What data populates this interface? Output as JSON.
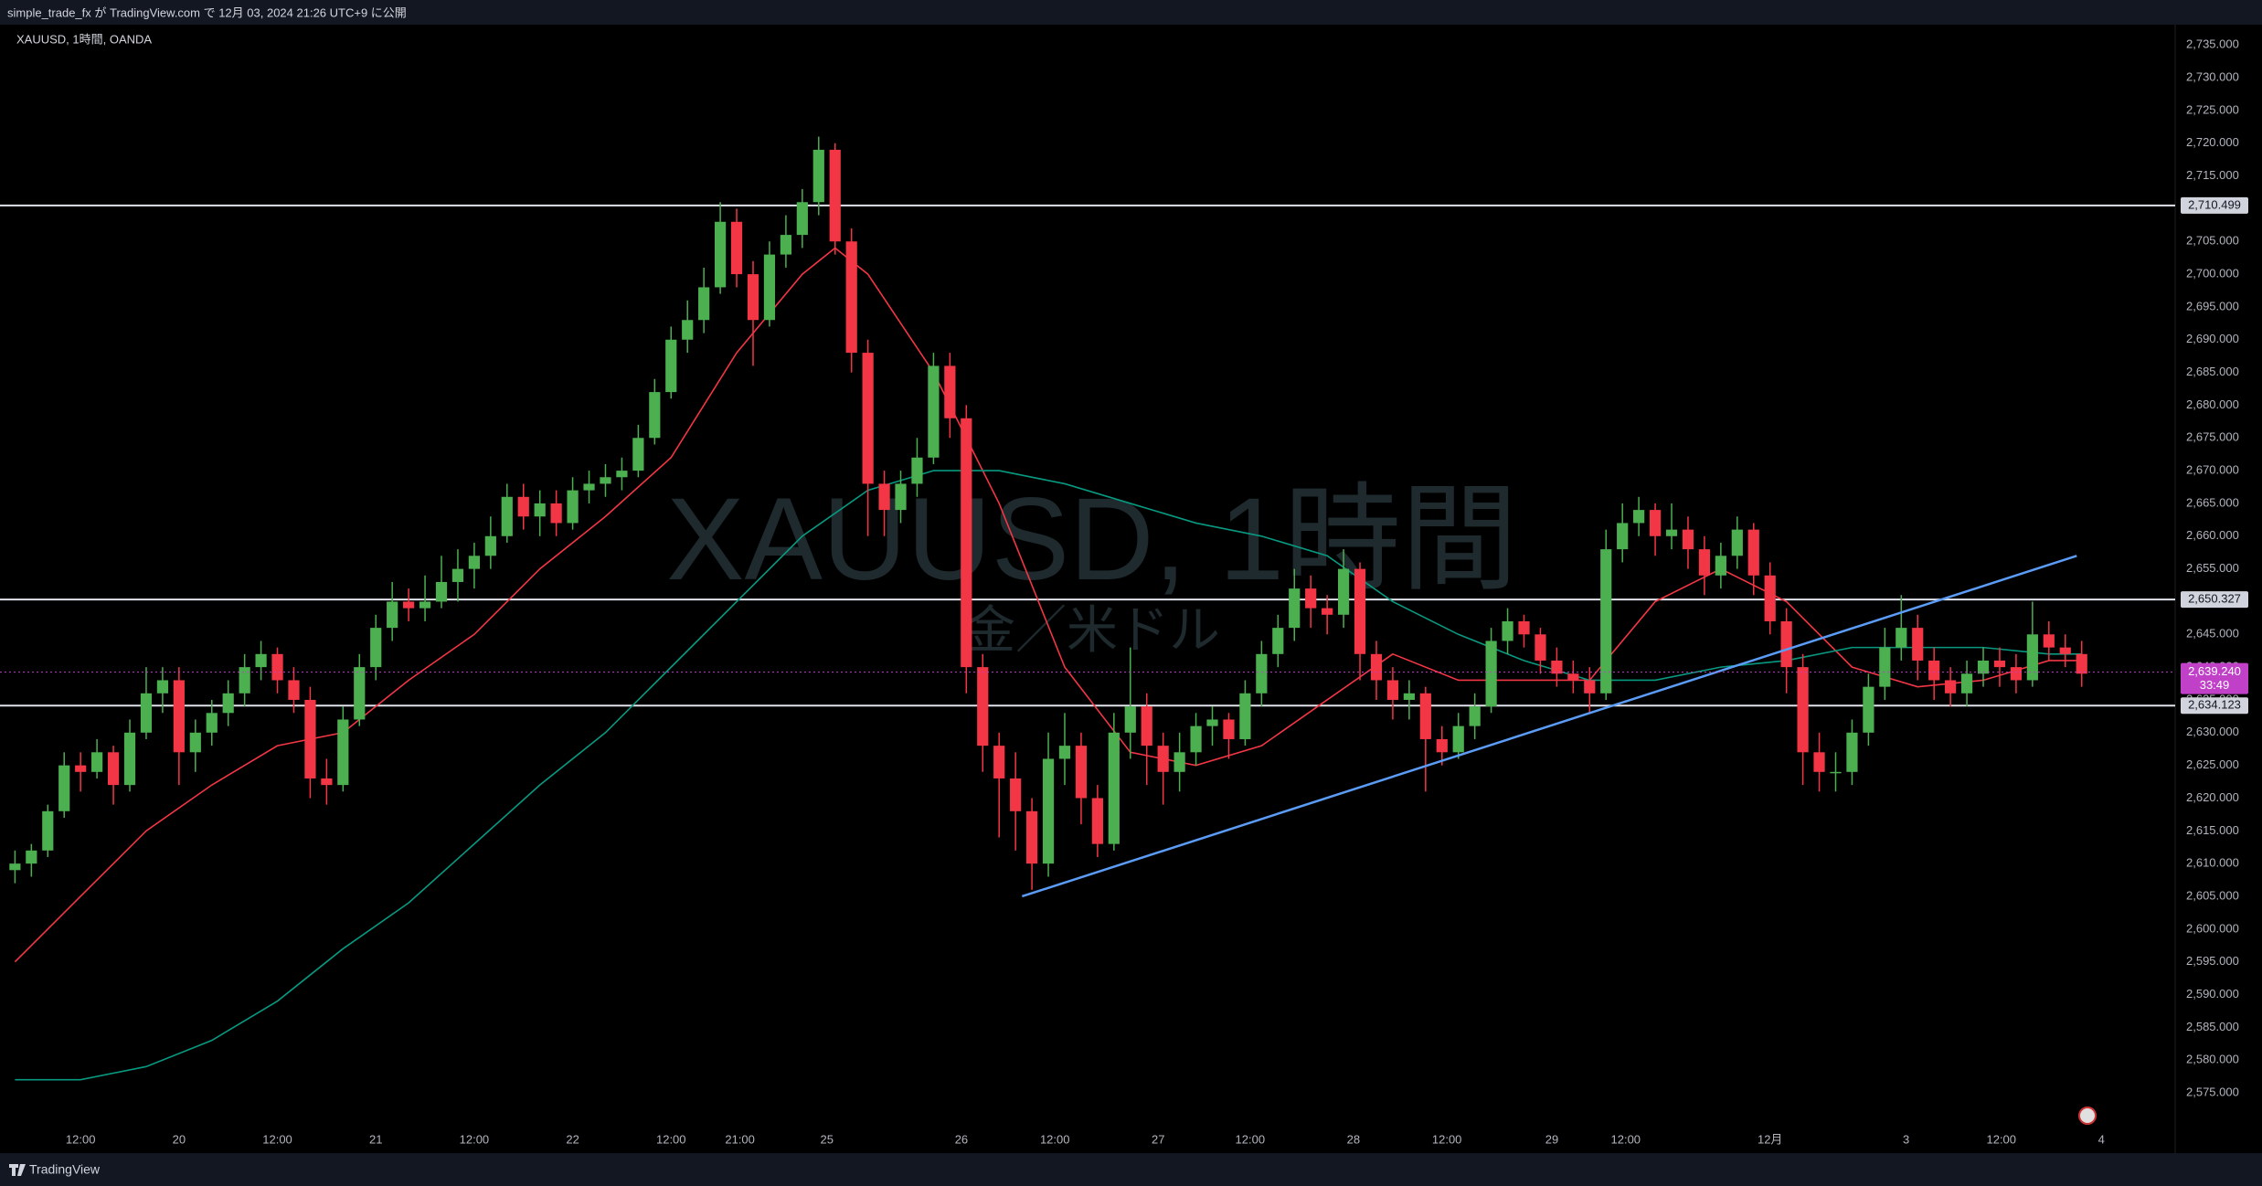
{
  "header": {
    "published": "simple_trade_fx が TradingView.com で 12月 03, 2024 21:26 UTC+9 に公開",
    "symbol": "XAUUSD, 1時間, OANDA",
    "footer": "TradingView"
  },
  "chart_data": {
    "type": "candlestick",
    "title": "XAUUSD, 1時間",
    "subtitle": "金／米ドル",
    "up_color": "#4caf50",
    "down_color": "#f23645",
    "xlim": [
      -0.3,
      131.7
    ],
    "ylim": [
      2569.7,
      2738.1
    ],
    "xticks": [
      {
        "value": 4,
        "label": "12:00"
      },
      {
        "value": 10,
        "label": "20"
      },
      {
        "value": 16,
        "label": "12:00"
      },
      {
        "value": 22,
        "label": "21"
      },
      {
        "value": 28,
        "label": "12:00"
      },
      {
        "value": 34,
        "label": "22"
      },
      {
        "value": 40,
        "label": "12:00"
      },
      {
        "value": 44.2,
        "label": "21:00"
      },
      {
        "value": 49.5,
        "label": "25"
      },
      {
        "value": 57.7,
        "label": "26"
      },
      {
        "value": 63.4,
        "label": "12:00"
      },
      {
        "value": 69.7,
        "label": "27"
      },
      {
        "value": 75.3,
        "label": "12:00"
      },
      {
        "value": 81.6,
        "label": "28"
      },
      {
        "value": 87.3,
        "label": "12:00"
      },
      {
        "value": 93.7,
        "label": "29"
      },
      {
        "value": 98.2,
        "label": "12:00"
      },
      {
        "value": 107,
        "label": "12月"
      },
      {
        "value": 115.3,
        "label": "3"
      },
      {
        "value": 121.1,
        "label": "12:00"
      },
      {
        "value": 127.2,
        "label": "4"
      }
    ],
    "yticks": [
      {
        "value": 2575,
        "label": "2,575.000"
      },
      {
        "value": 2580,
        "label": "2,580.000"
      },
      {
        "value": 2585,
        "label": "2,585.000"
      },
      {
        "value": 2590,
        "label": "2,590.000"
      },
      {
        "value": 2595,
        "label": "2,595.000"
      },
      {
        "value": 2600,
        "label": "2,600.000"
      },
      {
        "value": 2605,
        "label": "2,605.000"
      },
      {
        "value": 2610,
        "label": "2,610.000"
      },
      {
        "value": 2615,
        "label": "2,615.000"
      },
      {
        "value": 2620,
        "label": "2,620.000"
      },
      {
        "value": 2625,
        "label": "2,625.000"
      },
      {
        "value": 2630,
        "label": "2,630.000"
      },
      {
        "value": 2635,
        "label": "2,635.000"
      },
      {
        "value": 2640,
        "label": "2,640.000"
      },
      {
        "value": 2645,
        "label": "2,645.000"
      },
      {
        "value": 2650,
        "label": "2,650.000"
      },
      {
        "value": 2655,
        "label": "2,655.000"
      },
      {
        "value": 2660,
        "label": "2,660.000"
      },
      {
        "value": 2665,
        "label": "2,665.000"
      },
      {
        "value": 2670,
        "label": "2,670.000"
      },
      {
        "value": 2675,
        "label": "2,675.000"
      },
      {
        "value": 2680,
        "label": "2,680.000"
      },
      {
        "value": 2685,
        "label": "2,685.000"
      },
      {
        "value": 2690,
        "label": "2,690.000"
      },
      {
        "value": 2695,
        "label": "2,695.000"
      },
      {
        "value": 2700,
        "label": "2,700.000"
      },
      {
        "value": 2705,
        "label": "2,705.000"
      },
      {
        "value": 2710,
        "label": "2,710.000"
      },
      {
        "value": 2715,
        "label": "2,715.000"
      },
      {
        "value": 2720,
        "label": "2,720.000"
      },
      {
        "value": 2725,
        "label": "2,725.000"
      },
      {
        "value": 2730,
        "label": "2,730.000"
      },
      {
        "value": 2735,
        "label": "2,735.000"
      }
    ],
    "ohlc": [
      [
        2609,
        2612,
        2607,
        2610
      ],
      [
        2610,
        2613,
        2608,
        2612
      ],
      [
        2612,
        2619,
        2611,
        2618
      ],
      [
        2618,
        2627,
        2617,
        2625
      ],
      [
        2625,
        2627,
        2621,
        2624
      ],
      [
        2624,
        2629,
        2623,
        2627
      ],
      [
        2627,
        2628,
        2619,
        2622
      ],
      [
        2622,
        2632,
        2621,
        2630
      ],
      [
        2630,
        2640,
        2629,
        2636
      ],
      [
        2636,
        2640,
        2633,
        2638
      ],
      [
        2638,
        2640,
        2622,
        2627
      ],
      [
        2627,
        2632,
        2624,
        2630
      ],
      [
        2630,
        2635,
        2628,
        2633
      ],
      [
        2633,
        2638,
        2631,
        2636
      ],
      [
        2636,
        2642,
        2634,
        2640
      ],
      [
        2640,
        2644,
        2638,
        2642
      ],
      [
        2642,
        2643,
        2636,
        2638
      ],
      [
        2638,
        2640,
        2633,
        2635
      ],
      [
        2635,
        2637,
        2620,
        2623
      ],
      [
        2623,
        2626,
        2619,
        2622
      ],
      [
        2622,
        2634,
        2621,
        2632
      ],
      [
        2632,
        2642,
        2631,
        2640
      ],
      [
        2640,
        2648,
        2638,
        2646
      ],
      [
        2646,
        2653,
        2644,
        2650
      ],
      [
        2650,
        2652,
        2647,
        2649
      ],
      [
        2649,
        2654,
        2647,
        2650
      ],
      [
        2650,
        2657,
        2649,
        2653
      ],
      [
        2653,
        2658,
        2650,
        2655
      ],
      [
        2655,
        2659,
        2652,
        2657
      ],
      [
        2657,
        2663,
        2655,
        2660
      ],
      [
        2660,
        2668,
        2659,
        2666
      ],
      [
        2666,
        2668,
        2661,
        2663
      ],
      [
        2663,
        2667,
        2660,
        2665
      ],
      [
        2665,
        2667,
        2660,
        2662
      ],
      [
        2662,
        2669,
        2661,
        2667
      ],
      [
        2667,
        2670,
        2665,
        2668
      ],
      [
        2668,
        2671,
        2666,
        2669
      ],
      [
        2669,
        2672,
        2667,
        2670
      ],
      [
        2670,
        2677,
        2669,
        2675
      ],
      [
        2675,
        2684,
        2674,
        2682
      ],
      [
        2682,
        2692,
        2681,
        2690
      ],
      [
        2690,
        2696,
        2688,
        2693
      ],
      [
        2693,
        2701,
        2691,
        2698
      ],
      [
        2698,
        2711,
        2697,
        2708
      ],
      [
        2708,
        2710,
        2698,
        2700
      ],
      [
        2700,
        2702,
        2686,
        2693
      ],
      [
        2693,
        2705,
        2692,
        2703
      ],
      [
        2703,
        2709,
        2701,
        2706
      ],
      [
        2706,
        2713,
        2704,
        2711
      ],
      [
        2711,
        2721,
        2709,
        2719
      ],
      [
        2719,
        2720,
        2703,
        2705
      ],
      [
        2705,
        2707,
        2685,
        2688
      ],
      [
        2688,
        2690,
        2660,
        2668
      ],
      [
        2668,
        2670,
        2660,
        2664
      ],
      [
        2664,
        2670,
        2662,
        2668
      ],
      [
        2668,
        2675,
        2666,
        2672
      ],
      [
        2672,
        2688,
        2671,
        2686
      ],
      [
        2686,
        2688,
        2675,
        2678
      ],
      [
        2678,
        2680,
        2636,
        2640
      ],
      [
        2640,
        2642,
        2624,
        2628
      ],
      [
        2628,
        2630,
        2614,
        2623
      ],
      [
        2623,
        2627,
        2612,
        2618
      ],
      [
        2618,
        2620,
        2606,
        2610
      ],
      [
        2610,
        2630,
        2608,
        2626
      ],
      [
        2626,
        2633,
        2622,
        2628
      ],
      [
        2628,
        2630,
        2616,
        2620
      ],
      [
        2620,
        2622,
        2611,
        2613
      ],
      [
        2613,
        2633,
        2612,
        2630
      ],
      [
        2630,
        2643,
        2626,
        2634
      ],
      [
        2634,
        2636,
        2622,
        2628
      ],
      [
        2628,
        2630,
        2619,
        2624
      ],
      [
        2624,
        2630,
        2621,
        2627
      ],
      [
        2627,
        2633,
        2625,
        2631
      ],
      [
        2631,
        2634,
        2628,
        2632
      ],
      [
        2632,
        2633,
        2626,
        2629
      ],
      [
        2629,
        2638,
        2628,
        2636
      ],
      [
        2636,
        2644,
        2634,
        2642
      ],
      [
        2642,
        2648,
        2640,
        2646
      ],
      [
        2646,
        2655,
        2644,
        2652
      ],
      [
        2652,
        2654,
        2646,
        2649
      ],
      [
        2649,
        2651,
        2645,
        2648
      ],
      [
        2648,
        2658,
        2646,
        2655
      ],
      [
        2655,
        2656,
        2638,
        2642
      ],
      [
        2642,
        2644,
        2635,
        2638
      ],
      [
        2638,
        2640,
        2632,
        2635
      ],
      [
        2635,
        2638,
        2632,
        2636
      ],
      [
        2636,
        2637,
        2621,
        2629
      ],
      [
        2629,
        2631,
        2625,
        2627
      ],
      [
        2627,
        2633,
        2626,
        2631
      ],
      [
        2631,
        2636,
        2629,
        2634
      ],
      [
        2634,
        2646,
        2633,
        2644
      ],
      [
        2644,
        2649,
        2642,
        2647
      ],
      [
        2647,
        2648,
        2643,
        2645
      ],
      [
        2645,
        2646,
        2639,
        2641
      ],
      [
        2641,
        2643,
        2637,
        2639
      ],
      [
        2639,
        2641,
        2636,
        2638
      ],
      [
        2638,
        2640,
        2633,
        2636
      ],
      [
        2636,
        2661,
        2635,
        2658
      ],
      [
        2658,
        2665,
        2656,
        2662
      ],
      [
        2662,
        2666,
        2660,
        2664
      ],
      [
        2664,
        2665,
        2657,
        2660
      ],
      [
        2660,
        2665,
        2658,
        2661
      ],
      [
        2661,
        2663,
        2655,
        2658
      ],
      [
        2658,
        2660,
        2651,
        2654
      ],
      [
        2654,
        2659,
        2652,
        2657
      ],
      [
        2657,
        2663,
        2655,
        2661
      ],
      [
        2661,
        2662,
        2651,
        2654
      ],
      [
        2654,
        2656,
        2645,
        2647
      ],
      [
        2647,
        2649,
        2636,
        2640
      ],
      [
        2640,
        2642,
        2622,
        2627
      ],
      [
        2627,
        2630,
        2621,
        2624
      ],
      [
        2624,
        2627,
        2621,
        2624
      ],
      [
        2624,
        2632,
        2622,
        2630
      ],
      [
        2630,
        2639,
        2628,
        2637
      ],
      [
        2637,
        2646,
        2635,
        2643
      ],
      [
        2643,
        2651,
        2641,
        2646
      ],
      [
        2646,
        2648,
        2638,
        2641
      ],
      [
        2641,
        2643,
        2635,
        2638
      ],
      [
        2638,
        2640,
        2634,
        2636
      ],
      [
        2636,
        2641,
        2634,
        2639
      ],
      [
        2639,
        2643,
        2637,
        2641
      ],
      [
        2641,
        2643,
        2637,
        2640
      ],
      [
        2640,
        2642,
        2636,
        2638
      ],
      [
        2638,
        2650,
        2637,
        2645
      ],
      [
        2645,
        2647,
        2641,
        2643
      ],
      [
        2643,
        2645,
        2640,
        2642
      ],
      [
        2642,
        2644,
        2637,
        2639
      ]
    ],
    "lines": [
      {
        "color": "#f23645",
        "x": [
          0,
          4,
          8,
          12,
          16,
          20,
          24,
          28,
          32,
          36,
          40,
          44,
          48,
          50,
          52,
          56,
          60,
          64,
          68,
          72,
          76,
          80,
          84,
          88,
          92,
          96,
          100,
          104,
          108,
          112,
          116,
          120,
          124,
          126
        ],
        "values": [
          2595,
          2605,
          2615,
          2622,
          2628,
          2630,
          2638,
          2645,
          2655,
          2663,
          2672,
          2688,
          2700,
          2704,
          2700,
          2685,
          2665,
          2640,
          2627,
          2625,
          2628,
          2635,
          2642,
          2638,
          2638,
          2638,
          2650,
          2655,
          2650,
          2640,
          2637,
          2638,
          2641,
          2641
        ]
      },
      {
        "color": "#089981",
        "x": [
          0,
          4,
          8,
          12,
          16,
          20,
          24,
          28,
          32,
          36,
          40,
          44,
          48,
          52,
          56,
          60,
          64,
          68,
          72,
          76,
          80,
          84,
          88,
          92,
          96,
          100,
          104,
          108,
          112,
          116,
          120,
          124,
          126
        ],
        "values": [
          2577,
          2577,
          2579,
          2583,
          2589,
          2597,
          2604,
          2613,
          2622,
          2630,
          2640,
          2650,
          2660,
          2667,
          2670,
          2670,
          2668,
          2665,
          2662,
          2660,
          2657,
          2650,
          2645,
          2641,
          2638,
          2638,
          2640,
          2641,
          2643,
          2643,
          2643,
          2642,
          2642
        ]
      }
    ],
    "trendlines": [
      {
        "color": "#5b9cf6",
        "x": [
          61.4,
          125.7
        ],
        "values": [
          2605,
          2657
        ]
      }
    ],
    "hlines": [
      {
        "value": 2710.499,
        "label": "2,710.499"
      },
      {
        "value": 2650.327,
        "label": "2,650.327"
      },
      {
        "value": 2634.123,
        "label": "2,634.123"
      }
    ],
    "last_price": {
      "value": 2639.24,
      "label": "2,639.240",
      "countdown": "33:49",
      "color": "#c040c8"
    }
  }
}
